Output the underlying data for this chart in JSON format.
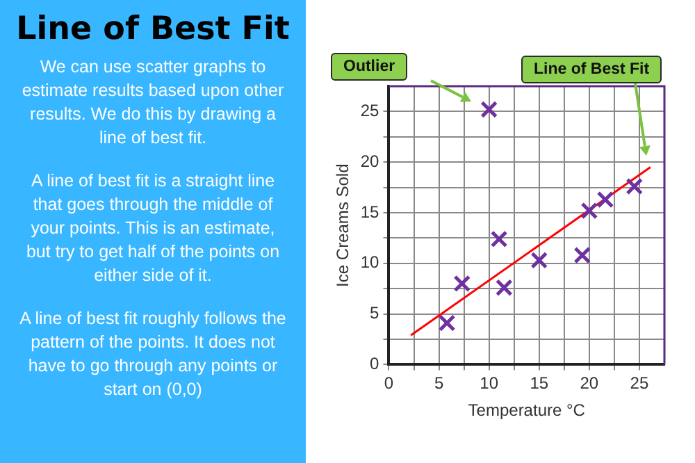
{
  "chart_data": {
    "type": "scatter",
    "title": "Line of Best Fit",
    "xlabel": "Temperature °C",
    "ylabel": "Ice Creams Sold",
    "annotations": [
      "We can use scatter graphs to estimate results based upon other results. We do this by drawing a line of best fit.",
      "A line of best fit is a straight line that goes through the middle of your points. This is an estimate, but try to get half of the points on either side of it.",
      "A line of best fit roughly follows the pattern of the points. It does not have to go through any points or start on (0,0)",
      "Outlier",
      "Line of Best Fit"
    ],
    "series": [
      {
        "type": "scatter",
        "color": "#7030a0",
        "marker": "cross",
        "x": [
          10,
          5.8,
          7.3,
          11,
          11.5,
          15,
          19.3,
          20,
          21.6,
          24.5
        ],
        "values": [
          25.2,
          4.1,
          8,
          12.4,
          7.6,
          10.3,
          10.8,
          15.2,
          16.3,
          17.6
        ]
      },
      {
        "type": "line",
        "color": "#ff0000",
        "x": [
          2.2,
          26.1
        ],
        "values": [
          2.9,
          19.5
        ]
      }
    ],
    "xlim": [
      0,
      27.5
    ],
    "ylim": [
      0,
      27.5
    ],
    "xticks": [
      0,
      {
        "value": 2.5,
        "label": null
      },
      5,
      {
        "value": 7.5,
        "label": null
      },
      10,
      {
        "value": 12.5,
        "label": null
      },
      15,
      {
        "value": 17.5,
        "label": null
      },
      20,
      {
        "value": 22.5,
        "label": null
      },
      25
    ],
    "yticks": [
      0,
      {
        "value": 2.5,
        "label": null
      },
      5,
      {
        "value": 7.5,
        "label": null
      },
      10,
      {
        "value": 12.5,
        "label": null
      },
      15,
      {
        "value": 17.5,
        "label": null
      },
      20,
      {
        "value": 22.5,
        "label": null
      },
      25
    ],
    "grid": true
  }
}
